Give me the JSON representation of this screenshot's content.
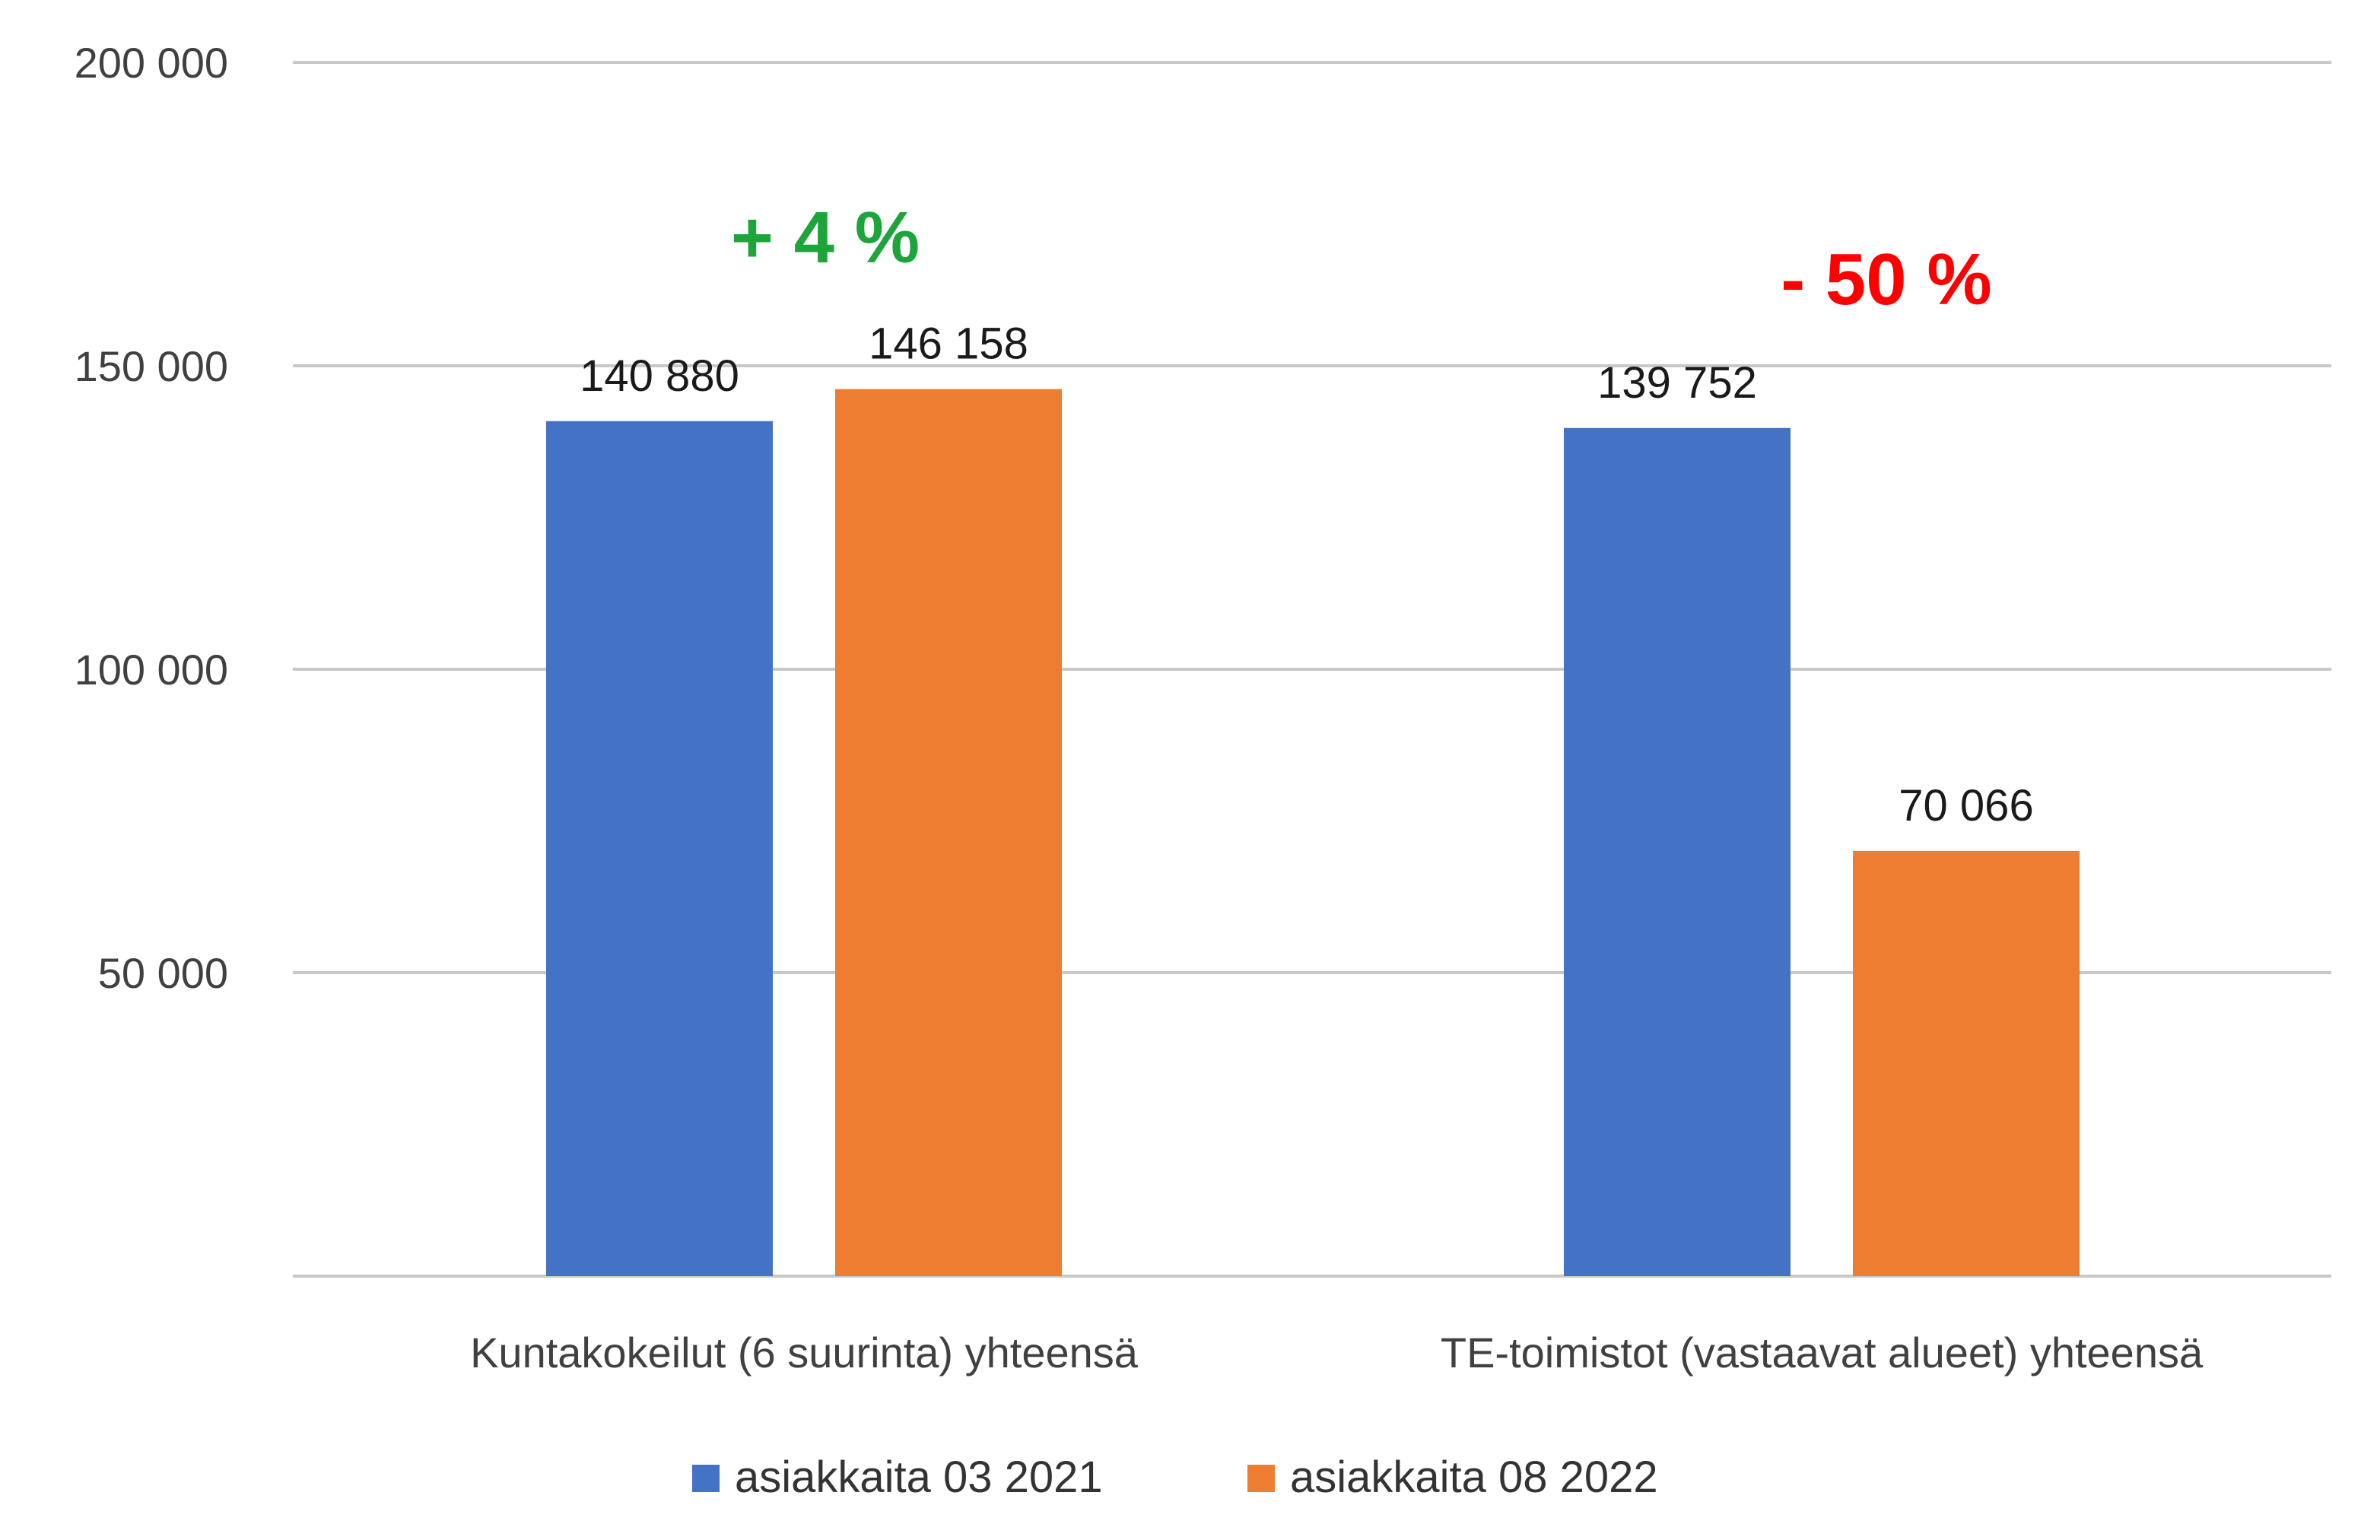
{
  "chart_data": {
    "type": "bar",
    "categories": [
      "Kuntakokeilut (6 suurinta) yhteensä",
      "TE-toimistot (vastaavat alueet) yhteensä"
    ],
    "series": [
      {
        "name": "asiakkaita 03 2021",
        "color": "#4472C4",
        "values": [
          140880,
          139752
        ],
        "labels": [
          "140 880",
          "139 752"
        ]
      },
      {
        "name": "asiakkaita 08 2022",
        "color": "#ED7D31",
        "values": [
          146158,
          70066
        ],
        "labels": [
          "146 158",
          "70 066"
        ]
      }
    ],
    "ylim": [
      0,
      200000
    ],
    "yticks": [
      50000,
      100000,
      150000,
      200000
    ],
    "ytick_labels": [
      "50 000",
      "100 000",
      "150 000",
      "200 000"
    ],
    "grid": true,
    "legend_position": "bottom",
    "annotations": [
      {
        "text": "+ 4 %",
        "category": 0,
        "color": "#1DA43A"
      },
      {
        "text": "- 50 %",
        "category": 1,
        "color": "#FF0000"
      }
    ],
    "title": "",
    "xlabel": "",
    "ylabel": ""
  }
}
